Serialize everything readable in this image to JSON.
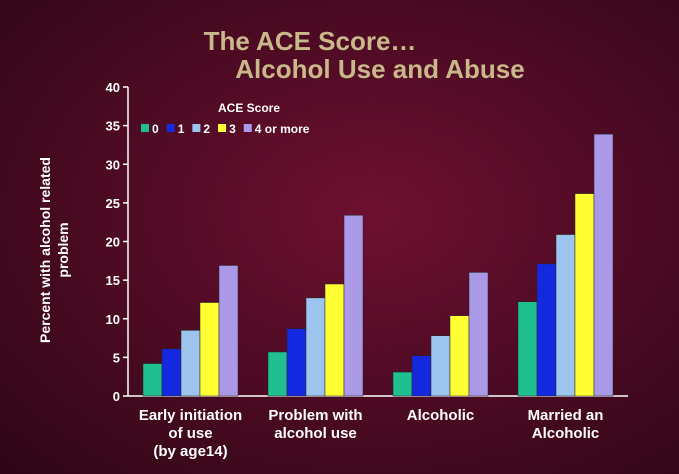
{
  "chart_data": {
    "type": "bar",
    "title": [
      "The ACE Score…",
      "Alcohol Use and Abuse"
    ],
    "ylabel": [
      "Percent with alcohol related",
      "problem"
    ],
    "ylim": [
      0,
      40
    ],
    "yticks": [
      0,
      5,
      10,
      15,
      20,
      25,
      30,
      35,
      40
    ],
    "categories": [
      [
        "Early initiation",
        "of use",
        "(by age14)"
      ],
      [
        "Problem with",
        "alcohol use"
      ],
      [
        "Alcoholic"
      ],
      [
        "Married an",
        "Alcoholic"
      ]
    ],
    "legend_title": "ACE Score",
    "legend_position": "top-left",
    "grid": false,
    "series": [
      {
        "name": "0",
        "color": "#1fbf8f",
        "values": [
          4.2,
          5.7,
          3.1,
          12.2
        ]
      },
      {
        "name": "1",
        "color": "#1428e0",
        "values": [
          6.1,
          8.7,
          5.2,
          17.1
        ]
      },
      {
        "name": "2",
        "color": "#9cc4ec",
        "values": [
          8.5,
          12.7,
          7.8,
          20.9
        ]
      },
      {
        "name": "3",
        "color": "#ffff33",
        "values": [
          12.1,
          14.5,
          10.4,
          26.2
        ]
      },
      {
        "name": "4 or more",
        "color": "#aa99e6",
        "values": [
          16.9,
          23.4,
          16.0,
          33.9
        ]
      }
    ]
  }
}
